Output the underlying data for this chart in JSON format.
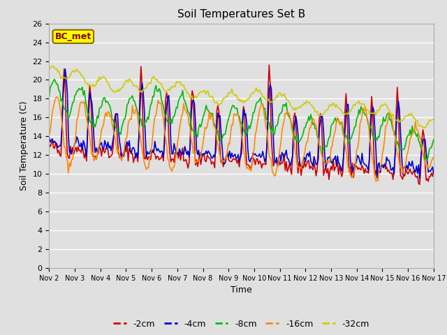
{
  "title": "Soil Temperatures Set B",
  "xlabel": "Time",
  "ylabel": "Soil Temperature (C)",
  "ylim": [
    0,
    26
  ],
  "xlim": [
    0,
    360
  ],
  "bg_color": "#e0e0e0",
  "grid_color": "#ffffff",
  "annotation_text": "BC_met",
  "annotation_bg": "#ffff00",
  "annotation_border": "#8b6914",
  "annotation_text_color": "#8b0000",
  "series_order": [
    "-2cm",
    "-4cm",
    "-8cm",
    "-16cm",
    "-32cm"
  ],
  "series": {
    "-2cm": {
      "color": "#cc0000",
      "linewidth": 1.2
    },
    "-4cm": {
      "color": "#0000cc",
      "linewidth": 1.2
    },
    "-8cm": {
      "color": "#00bb00",
      "linewidth": 1.2
    },
    "-16cm": {
      "color": "#ff8800",
      "linewidth": 1.2
    },
    "-32cm": {
      "color": "#cccc00",
      "linewidth": 1.2
    }
  },
  "xtick_labels": [
    "Nov 2",
    "Nov 3",
    "Nov 4",
    "Nov 5",
    "Nov 6",
    "Nov 7",
    "Nov 8",
    "Nov 9",
    "Nov 10",
    "Nov 11",
    "Nov 12",
    "Nov 13",
    "Nov 14",
    "Nov 15",
    "Nov 16",
    "Nov 17"
  ],
  "xtick_positions": [
    0,
    24,
    48,
    72,
    96,
    120,
    144,
    168,
    192,
    216,
    240,
    264,
    288,
    312,
    336,
    360
  ],
  "ytick_positions": [
    0,
    2,
    4,
    6,
    8,
    10,
    12,
    14,
    16,
    18,
    20,
    22,
    24,
    26
  ],
  "n_hours": 361,
  "legend_labels": [
    "-2cm",
    "-4cm",
    "-8cm",
    "-16cm",
    "-32cm"
  ]
}
